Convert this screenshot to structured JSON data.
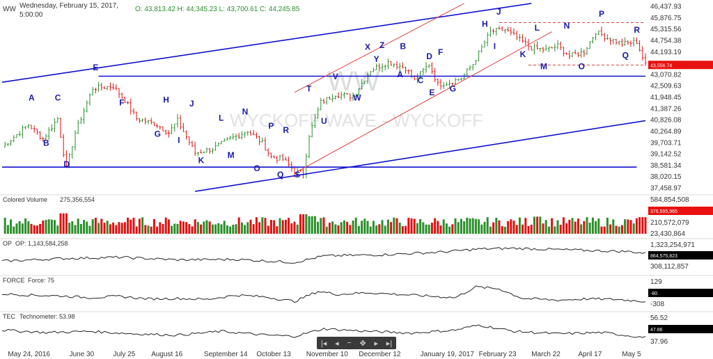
{
  "header": {
    "symbol": "WW",
    "date_line1": "Wednesday, February 15, 2017,",
    "date_line2": "5:00:00",
    "ohlc": "O: 43,813.42 H: 44,345.23 L: 43,700.61 C: 44,245.85"
  },
  "watermark": "WYCKOFF WAVE - WYCKOFF",
  "colors": {
    "up": "#2a8f2a",
    "down": "#e01010",
    "line": "#1010d0",
    "red_line": "#e04040",
    "label": "#1a1aa8"
  },
  "navigator": {
    "icons": [
      "first-icon",
      "prev-icon",
      "zoom-out-icon",
      "pan-icon",
      "next-icon",
      "last-icon"
    ],
    "glyphs": [
      "|◂",
      "◂",
      "−",
      "✥",
      "▸",
      "▸|"
    ]
  },
  "chart_data": [
    {
      "type": "ohlc",
      "title": "WW",
      "ylim": [
        37200,
        46700
      ],
      "y_ticks": [
        "46,437.93",
        "45,876.75",
        "45,315.56",
        "44,754.38",
        "44,193.19",
        "43,556.74",
        "43,070.82",
        "42,509.63",
        "41,948.45",
        "41,387.26",
        "40,826.08",
        "40,264.89",
        "39,703.71",
        "39,142.52",
        "38,581.34",
        "38,020.15",
        "37,458.97"
      ],
      "y_tick_values": [
        46437.93,
        45876.75,
        45315.56,
        44754.38,
        44193.19,
        43556.74,
        43070.82,
        42509.63,
        41948.45,
        41387.26,
        40826.08,
        40264.89,
        39703.71,
        39142.52,
        38581.34,
        38020.15,
        37458.97
      ],
      "last_price": "43,556.74",
      "x_ticks": [
        "May 24, 2016",
        "June 30",
        "July 25",
        "August 16",
        "September 14",
        "October 13",
        "November 10",
        "December 12",
        "January 19, 2017",
        "February 23",
        "March 22",
        "April 17",
        "May 5"
      ],
      "x_tick_bars": [
        2,
        23,
        38,
        51,
        69,
        87,
        104,
        122,
        143,
        163,
        181,
        197,
        212
      ],
      "bar_count": 220,
      "closes_waypoints": [
        [
          0,
          39500
        ],
        [
          9,
          40600
        ],
        [
          14,
          39900
        ],
        [
          19,
          40900
        ],
        [
          22,
          38400
        ],
        [
          25,
          40200
        ],
        [
          31,
          42400
        ],
        [
          38,
          42500
        ],
        [
          42,
          41800
        ],
        [
          46,
          40900
        ],
        [
          53,
          40600
        ],
        [
          57,
          40200
        ],
        [
          60,
          40800
        ],
        [
          66,
          39200
        ],
        [
          72,
          39400
        ],
        [
          78,
          39900
        ],
        [
          84,
          40300
        ],
        [
          89,
          39700
        ],
        [
          92,
          39000
        ],
        [
          96,
          38900
        ],
        [
          100,
          38300
        ],
        [
          103,
          38200
        ],
        [
          105,
          40100
        ],
        [
          109,
          41700
        ],
        [
          114,
          42100
        ],
        [
          120,
          42000
        ],
        [
          126,
          43300
        ],
        [
          132,
          43700
        ],
        [
          138,
          43400
        ],
        [
          141,
          42800
        ],
        [
          146,
          43600
        ],
        [
          149,
          42600
        ],
        [
          153,
          42700
        ],
        [
          157,
          42900
        ],
        [
          161,
          43600
        ],
        [
          167,
          45200
        ],
        [
          172,
          45300
        ],
        [
          177,
          44800
        ],
        [
          181,
          44400
        ],
        [
          186,
          44300
        ],
        [
          190,
          44500
        ],
        [
          194,
          44000
        ],
        [
          199,
          44200
        ],
        [
          203,
          45200
        ],
        [
          207,
          44900
        ],
        [
          212,
          44600
        ],
        [
          217,
          44700
        ],
        [
          220,
          43560
        ]
      ],
      "wave_labels": [
        {
          "t": "A",
          "bar": 10,
          "price": 41800
        },
        {
          "t": "B",
          "bar": 15,
          "price": 39550
        },
        {
          "t": "C",
          "bar": 19,
          "price": 41800
        },
        {
          "t": "D",
          "bar": 22,
          "price": 38500
        },
        {
          "t": "E",
          "bar": 32,
          "price": 43300
        },
        {
          "t": "F",
          "bar": 41,
          "price": 41550
        },
        {
          "t": "H",
          "bar": 56,
          "price": 41700
        },
        {
          "t": "G",
          "bar": 53,
          "price": 40000
        },
        {
          "t": "J",
          "bar": 65,
          "price": 41500
        },
        {
          "t": "I",
          "bar": 61,
          "price": 39700
        },
        {
          "t": "K",
          "bar": 68,
          "price": 38700
        },
        {
          "t": "L",
          "bar": 75,
          "price": 40800
        },
        {
          "t": "M",
          "bar": 78,
          "price": 38950
        },
        {
          "t": "N",
          "bar": 83,
          "price": 41100
        },
        {
          "t": "O",
          "bar": 87,
          "price": 38300
        },
        {
          "t": "P",
          "bar": 92,
          "price": 40400
        },
        {
          "t": "Q",
          "bar": 95,
          "price": 38000
        },
        {
          "t": "R",
          "bar": 97,
          "price": 40200
        },
        {
          "t": "S",
          "bar": 101,
          "price": 38000
        },
        {
          "t": "T",
          "bar": 105,
          "price": 42250
        },
        {
          "t": "U",
          "bar": 110,
          "price": 40650
        },
        {
          "t": "V",
          "bar": 114,
          "price": 42850
        },
        {
          "t": "W",
          "bar": 121,
          "price": 41800
        },
        {
          "t": "X",
          "bar": 125,
          "price": 44300
        },
        {
          "t": "Y",
          "bar": 128,
          "price": 43700
        },
        {
          "t": "Z",
          "bar": 130,
          "price": 44400
        },
        {
          "t": "B",
          "bar": 137,
          "price": 44350
        },
        {
          "t": "A",
          "bar": 136,
          "price": 42950
        },
        {
          "t": "D",
          "bar": 146,
          "price": 43850
        },
        {
          "t": "C",
          "bar": 143,
          "price": 42650
        },
        {
          "t": "F",
          "bar": 150,
          "price": 44050
        },
        {
          "t": "E",
          "bar": 147,
          "price": 42050
        },
        {
          "t": "G",
          "bar": 154,
          "price": 42250
        },
        {
          "t": "H",
          "bar": 165,
          "price": 45450
        },
        {
          "t": "J",
          "bar": 170,
          "price": 46050
        },
        {
          "t": "I",
          "bar": 169,
          "price": 44350
        },
        {
          "t": "L",
          "bar": 183,
          "price": 45250
        },
        {
          "t": "K",
          "bar": 178,
          "price": 43950
        },
        {
          "t": "N",
          "bar": 193,
          "price": 45350
        },
        {
          "t": "M",
          "bar": 185,
          "price": 43350
        },
        {
          "t": "O",
          "bar": 198,
          "price": 43350
        },
        {
          "t": "P",
          "bar": 205,
          "price": 45950
        },
        {
          "t": "R",
          "bar": 217,
          "price": 45150
        },
        {
          "t": "Q",
          "bar": 213,
          "price": 43900
        }
      ],
      "lines": [
        {
          "style": "blue",
          "from": [
            0,
            42700
          ],
          "to": [
            181,
            46600
          ]
        },
        {
          "style": "blue",
          "from": [
            33,
            43000
          ],
          "to": [
            220,
            43000
          ]
        },
        {
          "style": "blue",
          "from": [
            0,
            38500
          ],
          "to": [
            217,
            38500
          ]
        },
        {
          "style": "blue",
          "from": [
            66,
            37300
          ],
          "to": [
            220,
            40800
          ]
        },
        {
          "style": "red",
          "from": [
            100,
            42200
          ],
          "to": [
            158,
            46600
          ]
        },
        {
          "style": "red",
          "from": [
            100,
            38200
          ],
          "to": [
            188,
            45200
          ]
        },
        {
          "style": "red_dashed",
          "from": [
            170,
            45650
          ],
          "to": [
            220,
            45650
          ]
        },
        {
          "style": "red_dashed",
          "from": [
            180,
            43550
          ],
          "to": [
            220,
            43550
          ]
        }
      ]
    },
    {
      "type": "bar",
      "title": "Colored Volume",
      "value": "275,356,554",
      "y_ticks": [
        "584,854,508",
        "376,595,965",
        "210,572,079",
        "23,430,864"
      ],
      "ylim": [
        0,
        584854508
      ],
      "peaks": [
        [
          21,
          430000000
        ],
        [
          103,
          410000000
        ],
        [
          106,
          370000000
        ],
        [
          183,
          360000000
        ],
        [
          219,
          350000000
        ]
      ]
    },
    {
      "type": "line",
      "title": "OP",
      "value": "1,143,584,258",
      "y_ticks": [
        "1,323,254,971",
        "864,575,823",
        "308,112,857"
      ],
      "waypoints": [
        [
          0,
          45
        ],
        [
          20,
          55
        ],
        [
          40,
          60
        ],
        [
          60,
          50
        ],
        [
          80,
          52
        ],
        [
          100,
          40
        ],
        [
          110,
          65
        ],
        [
          130,
          70
        ],
        [
          150,
          80
        ],
        [
          163,
          92
        ],
        [
          175,
          95
        ],
        [
          190,
          90
        ],
        [
          205,
          85
        ],
        [
          215,
          82
        ],
        [
          220,
          75
        ]
      ]
    },
    {
      "type": "line",
      "title": "FORCE",
      "value": "Force: 75",
      "y_ticks": [
        "129",
        "-80",
        "-308"
      ],
      "waypoints": [
        [
          0,
          60
        ],
        [
          10,
          55
        ],
        [
          20,
          52
        ],
        [
          30,
          45
        ],
        [
          40,
          50
        ],
        [
          50,
          40
        ],
        [
          60,
          42
        ],
        [
          70,
          38
        ],
        [
          80,
          55
        ],
        [
          90,
          48
        ],
        [
          100,
          30
        ],
        [
          108,
          70
        ],
        [
          115,
          58
        ],
        [
          125,
          65
        ],
        [
          140,
          55
        ],
        [
          155,
          45
        ],
        [
          162,
          88
        ],
        [
          170,
          80
        ],
        [
          178,
          42
        ],
        [
          190,
          35
        ],
        [
          200,
          40
        ],
        [
          210,
          38
        ],
        [
          220,
          30
        ]
      ]
    },
    {
      "type": "line",
      "title": "TEC",
      "value": "Technometer: 53.98",
      "y_ticks": [
        "56.52",
        "47.86",
        "37.96"
      ],
      "waypoints": [
        [
          0,
          60
        ],
        [
          15,
          50
        ],
        [
          30,
          55
        ],
        [
          45,
          45
        ],
        [
          60,
          40
        ],
        [
          75,
          55
        ],
        [
          90,
          40
        ],
        [
          100,
          35
        ],
        [
          110,
          65
        ],
        [
          125,
          55
        ],
        [
          140,
          48
        ],
        [
          155,
          60
        ],
        [
          163,
          80
        ],
        [
          175,
          55
        ],
        [
          190,
          45
        ],
        [
          205,
          50
        ],
        [
          220,
          30
        ]
      ]
    }
  ],
  "panels": {
    "volume": {
      "label": "Colored Volume",
      "value": "275,356,554"
    },
    "op": {
      "label": "OP",
      "value": "OP: 1,143,584,258"
    },
    "force": {
      "label": "FORCE",
      "value": "Force: 75"
    },
    "tec": {
      "label": "TEC",
      "value": "Technometer: 53.98"
    }
  }
}
